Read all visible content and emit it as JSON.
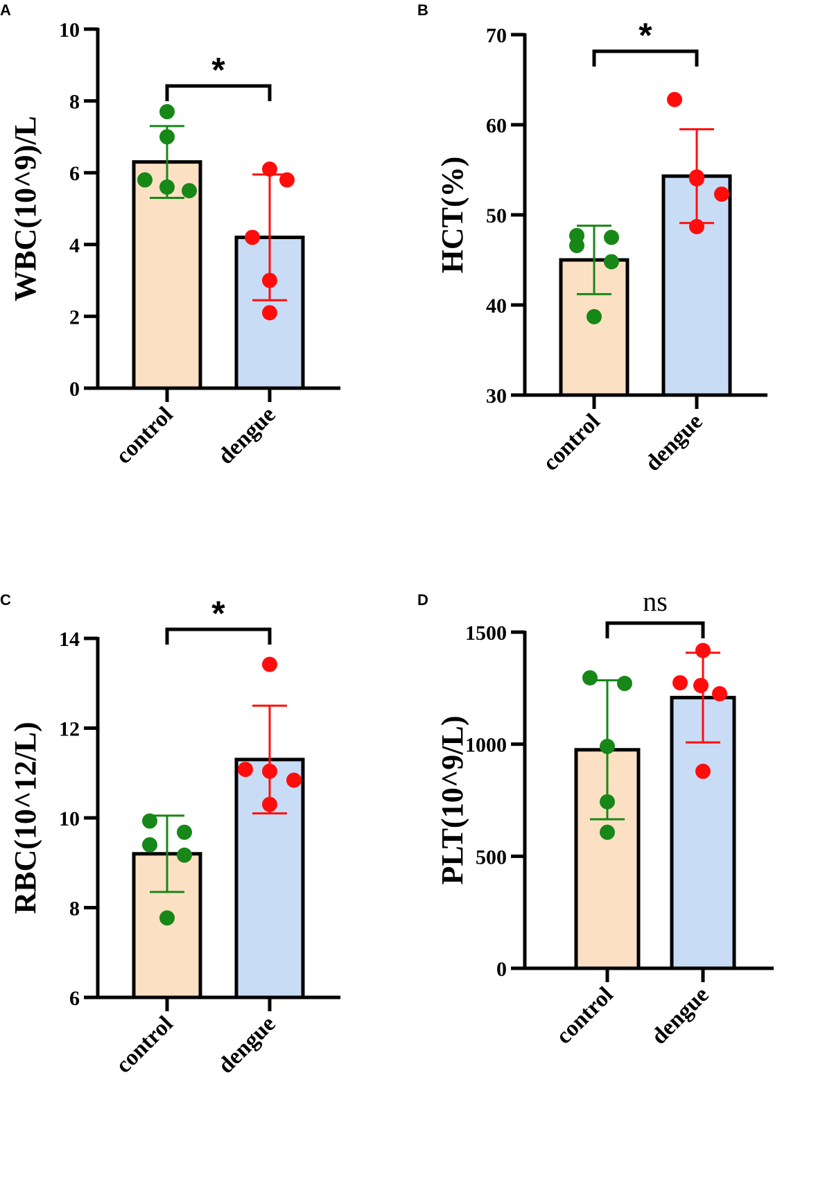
{
  "panels": [
    {
      "letter": "A"
    },
    {
      "letter": "B"
    },
    {
      "letter": "C"
    },
    {
      "letter": "D"
    }
  ],
  "colors": {
    "control_bar": "#FBE0C4",
    "dengue_bar": "#C9DCF6",
    "control_points": "#178717",
    "dengue_points": "#FF0D0D",
    "axis": "#000000"
  },
  "chart_data": [
    {
      "type": "bar",
      "title": "",
      "xlabel": "",
      "ylabel": "WBC(10^9)/L",
      "ylim": [
        0,
        10
      ],
      "yticks": [
        0,
        2,
        4,
        6,
        8,
        10
      ],
      "categories": [
        "control",
        "dengue"
      ],
      "values": [
        6.3,
        4.2
      ],
      "sd": [
        1.0,
        1.75
      ],
      "points": [
        [
          7.7,
          7.0,
          5.8,
          5.6,
          5.5
        ],
        [
          6.1,
          5.8,
          4.2,
          3.0,
          2.1
        ]
      ],
      "significance": "*"
    },
    {
      "type": "bar",
      "title": "",
      "xlabel": "",
      "ylabel": "HCT(%)",
      "ylim": [
        30,
        70
      ],
      "yticks": [
        30,
        40,
        50,
        60,
        70
      ],
      "categories": [
        "control",
        "dengue"
      ],
      "values": [
        45.0,
        54.3
      ],
      "sd": [
        3.8,
        5.2
      ],
      "points": [
        [
          47.7,
          47.5,
          46.6,
          44.8,
          38.7
        ],
        [
          62.8,
          54.2,
          54.0,
          52.3,
          48.7
        ]
      ],
      "significance": "*"
    },
    {
      "type": "bar",
      "title": "",
      "xlabel": "",
      "ylabel": "RBC(10^12/L)",
      "ylim": [
        6,
        14
      ],
      "yticks": [
        6,
        8,
        10,
        12,
        14
      ],
      "categories": [
        "control",
        "dengue"
      ],
      "values": [
        9.2,
        11.3
      ],
      "sd": [
        0.85,
        1.2
      ],
      "points": [
        [
          9.93,
          9.68,
          9.4,
          9.17,
          7.77
        ],
        [
          13.42,
          11.08,
          11.04,
          10.84,
          10.3
        ]
      ],
      "significance": "*"
    },
    {
      "type": "bar",
      "title": "",
      "xlabel": "",
      "ylabel": "PLT(10^9/L)",
      "ylim": [
        0,
        1500
      ],
      "yticks": [
        0,
        500,
        1000,
        1500
      ],
      "categories": [
        "control",
        "dengue"
      ],
      "values": [
        975,
        1208
      ],
      "sd": [
        310,
        200
      ],
      "points": [
        [
          1296,
          1271,
          990,
          743,
          607
        ],
        [
          1418,
          1274,
          1262,
          1225,
          879
        ]
      ],
      "significance": "ns"
    }
  ]
}
